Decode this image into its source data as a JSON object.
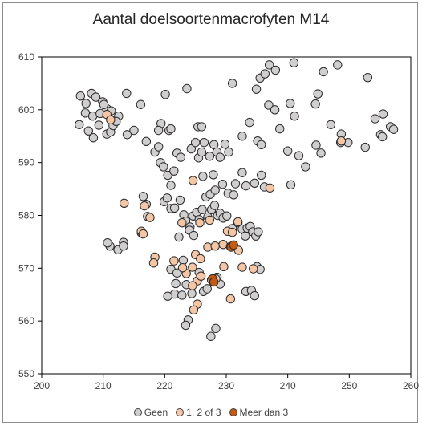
{
  "chart_data": {
    "type": "scatter",
    "title": "Aantal doelsoortenmacrofyten  M14",
    "xlabel": "",
    "ylabel": "",
    "xlim": [
      200,
      260
    ],
    "ylim": [
      550,
      610
    ],
    "xticks": [
      200,
      210,
      220,
      230,
      240,
      250,
      260
    ],
    "yticks": [
      550,
      560,
      570,
      580,
      590,
      600,
      610
    ],
    "grid": false,
    "legend_position": "bottom",
    "series": [
      {
        "name": "Geen",
        "color": "#d0cece",
        "points": [
          [
            206.3,
            602.6
          ],
          [
            207.2,
            601.2
          ],
          [
            208.1,
            603.1
          ],
          [
            208.8,
            602.4
          ],
          [
            209.9,
            601.5
          ],
          [
            210.6,
            600.2
          ],
          [
            211.3,
            599.8
          ],
          [
            212.5,
            598.8
          ],
          [
            213.8,
            603.1
          ],
          [
            216.1,
            601.0
          ],
          [
            219.4,
            597.4
          ],
          [
            220.1,
            602.9
          ],
          [
            223.6,
            604.0
          ],
          [
            219.0,
            596.1
          ],
          [
            220.7,
            596.1
          ],
          [
            221.0,
            596.4
          ],
          [
            225.4,
            596.8
          ],
          [
            226.0,
            596.8
          ],
          [
            206.1,
            597.2
          ],
          [
            207.1,
            599.4
          ],
          [
            207.6,
            596.0
          ],
          [
            208.3,
            598.8
          ],
          [
            208.4,
            594.7
          ],
          [
            209.3,
            597.1
          ],
          [
            209.5,
            599.3
          ],
          [
            210.1,
            601.0
          ],
          [
            210.6,
            595.4
          ],
          [
            211.2,
            595.8
          ],
          [
            211.6,
            597.0
          ],
          [
            212.1,
            597.8
          ],
          [
            213.9,
            595.3
          ],
          [
            215.0,
            596.1
          ],
          [
            217.0,
            594.0
          ],
          [
            218.4,
            592.0
          ],
          [
            219.0,
            593.0
          ],
          [
            219.3,
            590.0
          ],
          [
            219.8,
            589.2
          ],
          [
            220.5,
            587.6
          ],
          [
            221.0,
            585.7
          ],
          [
            221.5,
            588.4
          ],
          [
            222.0,
            591.8
          ],
          [
            222.6,
            591.0
          ],
          [
            224.3,
            592.6
          ],
          [
            225.0,
            593.8
          ],
          [
            225.5,
            590.9
          ],
          [
            226.0,
            592.0
          ],
          [
            226.4,
            593.8
          ],
          [
            227.3,
            591.2
          ],
          [
            228.0,
            593.4
          ],
          [
            228.5,
            592.0
          ],
          [
            229.0,
            591.0
          ],
          [
            229.8,
            593.5
          ],
          [
            230.4,
            592.0
          ],
          [
            231.0,
            605.0
          ],
          [
            232.6,
            595.0
          ],
          [
            233.8,
            597.6
          ],
          [
            234.9,
            603.9
          ],
          [
            235.5,
            606.0
          ],
          [
            236.3,
            606.8
          ],
          [
            237.0,
            608.5
          ],
          [
            238.0,
            607.5
          ],
          [
            236.9,
            600.9
          ],
          [
            237.9,
            600.0
          ],
          [
            238.7,
            596.4
          ],
          [
            241.0,
            608.9
          ],
          [
            240.4,
            601.2
          ],
          [
            241.1,
            598.8
          ],
          [
            242.9,
            589.2
          ],
          [
            244.5,
            601.1
          ],
          [
            244.9,
            603.0
          ],
          [
            245.8,
            607.2
          ],
          [
            247.0,
            597.2
          ],
          [
            248.1,
            608.5
          ],
          [
            248.7,
            595.4
          ],
          [
            249.8,
            593.8
          ],
          [
            252.6,
            592.9
          ],
          [
            253.0,
            606.1
          ],
          [
            254.2,
            598.3
          ],
          [
            255.1,
            595.3
          ],
          [
            255.5,
            599.2
          ],
          [
            256.7,
            596.8
          ],
          [
            255.4,
            594.9
          ],
          [
            257.2,
            596.3
          ],
          [
            235.1,
            594.1
          ],
          [
            235.7,
            593.4
          ],
          [
            240.0,
            592.2
          ],
          [
            241.8,
            591.3
          ],
          [
            244.6,
            593.3
          ],
          [
            245.4,
            591.8
          ],
          [
            248.6,
            593.8
          ],
          [
            231.5,
            586.0
          ],
          [
            232.6,
            588.1
          ],
          [
            233.2,
            585.6
          ],
          [
            234.6,
            586.1
          ],
          [
            235.7,
            587.6
          ],
          [
            236.2,
            585.4
          ],
          [
            240.5,
            585.8
          ],
          [
            216.5,
            583.6
          ],
          [
            217.0,
            582.1
          ],
          [
            217.2,
            579.8
          ],
          [
            219.9,
            582.6
          ],
          [
            220.4,
            583.3
          ],
          [
            221.0,
            581.3
          ],
          [
            221.6,
            581.4
          ],
          [
            222.5,
            582.9
          ],
          [
            223.1,
            580.1
          ],
          [
            223.4,
            578.9
          ],
          [
            224.1,
            577.8
          ],
          [
            224.6,
            579.9
          ],
          [
            225.2,
            580.6
          ],
          [
            225.6,
            579.2
          ],
          [
            226.1,
            581.1
          ],
          [
            226.7,
            583.5
          ],
          [
            227.0,
            579.7
          ],
          [
            227.6,
            581.1
          ],
          [
            228.1,
            581.9
          ],
          [
            228.6,
            580.0
          ],
          [
            229.0,
            580.4
          ],
          [
            229.5,
            579.5
          ],
          [
            230.1,
            579.9
          ],
          [
            231.0,
            577.5
          ],
          [
            231.9,
            578.6
          ],
          [
            232.6,
            577.4
          ],
          [
            233.1,
            576.1
          ],
          [
            233.4,
            577.6
          ],
          [
            233.9,
            577.9
          ],
          [
            234.3,
            576.9
          ],
          [
            234.8,
            576.1
          ],
          [
            235.2,
            576.9
          ],
          [
            227.4,
            584.0
          ],
          [
            226.2,
            587.4
          ],
          [
            227.9,
            587.7
          ],
          [
            228.2,
            584.8
          ],
          [
            229.4,
            585.9
          ],
          [
            230.3,
            584.2
          ],
          [
            231.2,
            583.9
          ],
          [
            224.0,
            577.2
          ],
          [
            224.7,
            576.2
          ],
          [
            222.3,
            575.9
          ],
          [
            221.0,
            569.8
          ],
          [
            221.8,
            567.1
          ],
          [
            222.0,
            569.1
          ],
          [
            223.0,
            571.5
          ],
          [
            223.5,
            566.9
          ],
          [
            224.4,
            565.2
          ],
          [
            223.8,
            560.2
          ],
          [
            223.4,
            559.2
          ],
          [
            225.6,
            569.2
          ],
          [
            226.3,
            565.6
          ],
          [
            226.9,
            566.1
          ],
          [
            227.9,
            567.4
          ],
          [
            228.5,
            568.3
          ],
          [
            229.0,
            567.0
          ],
          [
            228.3,
            558.6
          ],
          [
            227.5,
            557.1
          ],
          [
            221.6,
            565.1
          ],
          [
            220.5,
            564.7
          ],
          [
            222.8,
            564.9
          ],
          [
            233.2,
            565.6
          ],
          [
            234.1,
            565.8
          ],
          [
            234.6,
            564.8
          ],
          [
            235.0,
            570.3
          ],
          [
            235.5,
            569.8
          ],
          [
            213.3,
            574.9
          ],
          [
            212.4,
            573.5
          ],
          [
            216.2,
            576.7
          ],
          [
            211.1,
            574.2
          ],
          [
            210.7,
            574.8
          ],
          [
            213.3,
            574.2
          ]
        ]
      },
      {
        "name": "1, 2 of 3",
        "color": "#f4c6a6",
        "points": [
          [
            210.6,
            599.1
          ],
          [
            211.2,
            598.1
          ],
          [
            216.2,
            577.0
          ],
          [
            216.5,
            576.5
          ],
          [
            218.4,
            572.1
          ],
          [
            218.2,
            571.0
          ],
          [
            217.6,
            579.6
          ],
          [
            216.7,
            581.8
          ],
          [
            213.4,
            582.3
          ],
          [
            224.6,
            586.6
          ],
          [
            222.8,
            578.6
          ],
          [
            225.7,
            578.6
          ],
          [
            227.3,
            579.1
          ],
          [
            227.0,
            574.0
          ],
          [
            228.2,
            574.2
          ],
          [
            229.5,
            574.5
          ],
          [
            230.2,
            577.0
          ],
          [
            231.0,
            576.8
          ],
          [
            231.9,
            578.8
          ],
          [
            232.0,
            573.4
          ],
          [
            230.7,
            574.1
          ],
          [
            232.6,
            570.2
          ],
          [
            229.6,
            570.3
          ],
          [
            225.0,
            572.6
          ],
          [
            225.8,
            571.8
          ],
          [
            224.5,
            570.2
          ],
          [
            225.3,
            567.6
          ],
          [
            224.5,
            566.7
          ],
          [
            225.3,
            563.2
          ],
          [
            224.7,
            562.1
          ],
          [
            225.9,
            568.5
          ],
          [
            227.6,
            567.8
          ],
          [
            228.3,
            568.0
          ],
          [
            230.7,
            564.2
          ],
          [
            237.1,
            585.2
          ],
          [
            248.7,
            594.1
          ],
          [
            223.5,
            569.0
          ],
          [
            222.9,
            570.1
          ],
          [
            221.5,
            571.4
          ],
          [
            234.4,
            569.9
          ]
        ]
      },
      {
        "name": "Meer dan 3",
        "color": "#c55a11",
        "points": [
          [
            230.8,
            574.0
          ],
          [
            231.2,
            574.4
          ],
          [
            227.8,
            568.0
          ],
          [
            228.0,
            567.4
          ]
        ]
      }
    ]
  }
}
